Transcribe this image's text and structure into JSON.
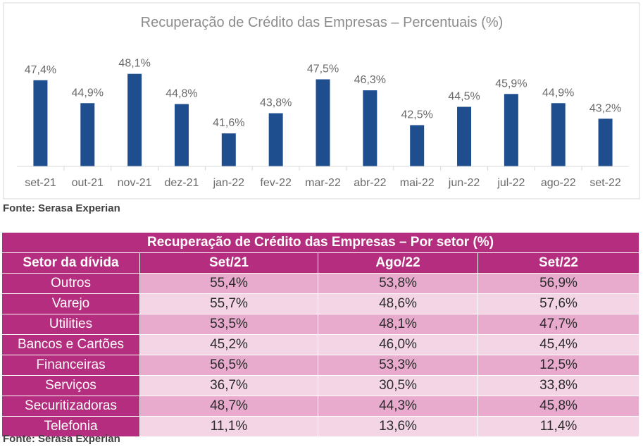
{
  "chart_data": {
    "type": "bar",
    "title": "Recuperação de Crédito das Empresas – Percentuais (%)",
    "categories": [
      "set-21",
      "out-21",
      "nov-21",
      "dez-21",
      "jan-22",
      "fev-22",
      "mar-22",
      "abr-22",
      "mai-22",
      "jun-22",
      "jul-22",
      "ago-22",
      "set-22"
    ],
    "values": [
      47.4,
      44.9,
      48.1,
      44.8,
      41.6,
      43.8,
      47.5,
      46.3,
      42.5,
      44.5,
      45.9,
      44.9,
      43.2
    ],
    "value_labels": [
      "47,4%",
      "44,9%",
      "48,1%",
      "44,8%",
      "41,6%",
      "43,8%",
      "47,5%",
      "46,3%",
      "42,5%",
      "44,5%",
      "45,9%",
      "44,9%",
      "43,2%"
    ],
    "ylim": [
      38,
      49
    ],
    "bar_color": "#1f4e8f",
    "grid": false
  },
  "source_1": "Fonte: Serasa Experian",
  "table": {
    "title": "Recuperação de Crédito das Empresas – Por setor (%)",
    "headers": [
      "Setor da dívida",
      "Set/21",
      "Ago/22",
      "Set/22"
    ],
    "rows": [
      {
        "sector": "Outros",
        "values": [
          "55,4%",
          "53,8%",
          "56,9%"
        ]
      },
      {
        "sector": "Varejo",
        "values": [
          "55,7%",
          "48,6%",
          "57,6%"
        ]
      },
      {
        "sector": "Utilities",
        "values": [
          "53,5%",
          "48,1%",
          "47,7%"
        ]
      },
      {
        "sector": "Bancos e Cartões",
        "values": [
          "45,2%",
          "46,0%",
          "45,4%"
        ]
      },
      {
        "sector": "Financeiras",
        "values": [
          "56,5%",
          "53,3%",
          "12,5%"
        ]
      },
      {
        "sector": "Serviços",
        "values": [
          "36,7%",
          "30,5%",
          "33,8%"
        ]
      },
      {
        "sector": "Securitizadoras",
        "values": [
          "48,7%",
          "44,3%",
          "45,8%"
        ]
      },
      {
        "sector": "Telefonia",
        "values": [
          "11,1%",
          "13,6%",
          "11,4%"
        ]
      }
    ],
    "colors": {
      "header": "#b52d7e",
      "row_dark": "#e8aacd",
      "row_light": "#f4d5e6"
    }
  },
  "source_2": "Fonte: Serasa Experian"
}
